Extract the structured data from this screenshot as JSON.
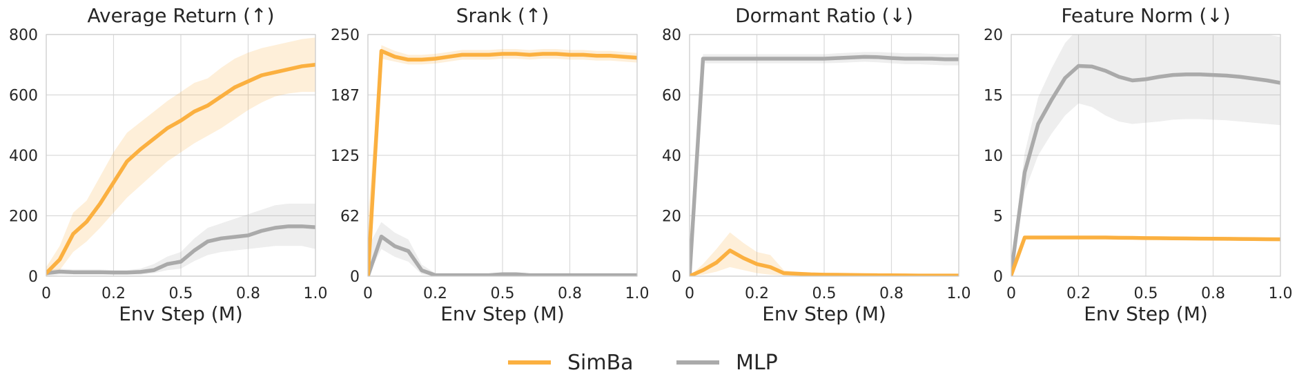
{
  "legend": [
    {
      "name": "SimBa",
      "color": "#fbb040"
    },
    {
      "name": "MLP",
      "color": "#aaaaaa"
    }
  ],
  "chart_data": [
    {
      "type": "line",
      "title": "Average Return (↑)",
      "xlabel": "Env Step (M)",
      "ylabel": "",
      "xlim": [
        0,
        1.0
      ],
      "ylim": [
        0,
        800
      ],
      "xticks": [
        0,
        0.25,
        0.5,
        0.75,
        1.0
      ],
      "xtick_labels": [
        "0",
        "0.2",
        "0.5",
        "0.8",
        "1.0"
      ],
      "yticks": [
        0,
        200,
        400,
        600,
        800
      ],
      "ytick_labels": [
        "0",
        "200",
        "400",
        "600",
        "800"
      ],
      "grid": true,
      "x": [
        0,
        0.05,
        0.1,
        0.15,
        0.2,
        0.25,
        0.3,
        0.35,
        0.4,
        0.45,
        0.5,
        0.55,
        0.6,
        0.65,
        0.7,
        0.75,
        0.8,
        0.85,
        0.9,
        0.95,
        1.0
      ],
      "series": [
        {
          "name": "SimBa",
          "color": "#fbb040",
          "values": [
            10,
            55,
            140,
            180,
            240,
            310,
            380,
            420,
            455,
            490,
            515,
            545,
            565,
            595,
            625,
            645,
            665,
            675,
            685,
            695,
            700
          ],
          "lower": [
            0,
            20,
            80,
            115,
            160,
            210,
            260,
            300,
            340,
            380,
            410,
            440,
            465,
            490,
            520,
            550,
            575,
            595,
            605,
            610,
            610
          ],
          "upper": [
            30,
            100,
            210,
            250,
            330,
            410,
            475,
            510,
            545,
            580,
            610,
            640,
            655,
            690,
            720,
            740,
            755,
            765,
            775,
            785,
            790
          ]
        },
        {
          "name": "MLP",
          "color": "#aaaaaa",
          "values": [
            10,
            15,
            13,
            13,
            13,
            12,
            12,
            14,
            20,
            40,
            48,
            85,
            115,
            125,
            130,
            135,
            150,
            160,
            165,
            165,
            162
          ],
          "lower": [
            0,
            5,
            5,
            5,
            5,
            5,
            5,
            5,
            10,
            20,
            25,
            50,
            70,
            80,
            85,
            90,
            95,
            100,
            100,
            100,
            90
          ],
          "upper": [
            20,
            25,
            22,
            22,
            22,
            20,
            20,
            25,
            40,
            65,
            80,
            125,
            160,
            175,
            190,
            205,
            220,
            235,
            240,
            240,
            240
          ]
        }
      ]
    },
    {
      "type": "line",
      "title": "Srank (↑)",
      "xlabel": "Env Step (M)",
      "ylabel": "",
      "xlim": [
        0,
        1.0
      ],
      "ylim": [
        0,
        250
      ],
      "xticks": [
        0,
        0.25,
        0.5,
        0.75,
        1.0
      ],
      "xtick_labels": [
        "0",
        "0.2",
        "0.5",
        "0.8",
        "1.0"
      ],
      "yticks": [
        0,
        62.5,
        125,
        187.5,
        250
      ],
      "ytick_labels": [
        "0",
        "62",
        "125",
        "187",
        "250"
      ],
      "grid": true,
      "x": [
        0,
        0.05,
        0.1,
        0.15,
        0.2,
        0.25,
        0.3,
        0.35,
        0.4,
        0.45,
        0.5,
        0.55,
        0.6,
        0.65,
        0.7,
        0.75,
        0.8,
        0.85,
        0.9,
        0.95,
        1.0
      ],
      "series": [
        {
          "name": "SimBa",
          "color": "#fbb040",
          "values": [
            0,
            233,
            227,
            224,
            224,
            225,
            227,
            229,
            229,
            229,
            230,
            230,
            229,
            230,
            230,
            229,
            229,
            228,
            228,
            227,
            226
          ],
          "lower": [
            0,
            225,
            222,
            219,
            219,
            220,
            222,
            224,
            224,
            224,
            225,
            225,
            224,
            225,
            225,
            224,
            224,
            223,
            223,
            222,
            221
          ],
          "upper": [
            60,
            239,
            233,
            229,
            229,
            230,
            232,
            234,
            234,
            234,
            235,
            235,
            234,
            235,
            235,
            234,
            234,
            233,
            233,
            232,
            231
          ]
        },
        {
          "name": "MLP",
          "color": "#aaaaaa",
          "values": [
            0,
            41,
            31,
            26,
            6,
            1,
            1,
            1,
            1,
            1,
            2,
            2,
            1,
            1,
            1,
            1,
            1,
            1,
            1,
            1,
            1
          ],
          "lower": [
            0,
            28,
            20,
            15,
            2,
            0,
            0,
            0,
            0,
            0,
            0,
            0,
            0,
            0,
            0,
            0,
            0,
            0,
            0,
            0,
            0
          ],
          "upper": [
            30,
            56,
            45,
            38,
            12,
            3,
            3,
            3,
            3,
            3,
            4,
            4,
            3,
            3,
            3,
            3,
            3,
            3,
            3,
            3,
            3
          ]
        }
      ]
    },
    {
      "type": "line",
      "title": "Dormant Ratio (↓)",
      "xlabel": "Env Step (M)",
      "ylabel": "",
      "xlim": [
        0,
        1.0
      ],
      "ylim": [
        0,
        80
      ],
      "xticks": [
        0,
        0.25,
        0.5,
        0.75,
        1.0
      ],
      "xtick_labels": [
        "0",
        "0.2",
        "0.5",
        "0.8",
        "1.0"
      ],
      "yticks": [
        0,
        20,
        40,
        60,
        80
      ],
      "ytick_labels": [
        "0",
        "20",
        "40",
        "60",
        "80"
      ],
      "grid": true,
      "x": [
        0,
        0.05,
        0.1,
        0.15,
        0.2,
        0.25,
        0.3,
        0.35,
        0.4,
        0.45,
        0.5,
        0.55,
        0.6,
        0.65,
        0.7,
        0.75,
        0.8,
        0.85,
        0.9,
        0.95,
        1.0
      ],
      "series": [
        {
          "name": "SimBa",
          "color": "#fbb040",
          "values": [
            0,
            2,
            4.5,
            8.5,
            6,
            4,
            3,
            1,
            0.8,
            0.6,
            0.5,
            0.45,
            0.4,
            0.35,
            0.3,
            0.3,
            0.25,
            0.2,
            0.2,
            0.2,
            0.2
          ],
          "lower": [
            0,
            0.5,
            1.5,
            3,
            2,
            1,
            0.5,
            0.2,
            0.2,
            0.2,
            0.1,
            0.1,
            0.1,
            0.1,
            0.1,
            0.1,
            0.1,
            0.1,
            0.1,
            0.1,
            0.1
          ],
          "upper": [
            0,
            4,
            9,
            14.5,
            11,
            8,
            7,
            2,
            1.5,
            1.2,
            1,
            0.9,
            0.8,
            0.7,
            0.6,
            0.6,
            0.5,
            0.4,
            0.4,
            0.4,
            0.4
          ]
        },
        {
          "name": "MLP",
          "color": "#aaaaaa",
          "values": [
            0,
            72,
            72,
            72,
            72,
            72,
            72,
            72,
            72,
            72,
            72,
            72.2,
            72.4,
            72.6,
            72.5,
            72.2,
            72,
            72,
            72,
            71.8,
            71.8
          ],
          "lower": [
            0,
            70.5,
            70.5,
            70.5,
            70.5,
            70.5,
            70.5,
            70.5,
            70.5,
            70.5,
            70.5,
            70.6,
            70.8,
            71,
            70.8,
            70.5,
            70.2,
            70.2,
            70,
            69.8,
            69.8
          ],
          "upper": [
            0,
            73.5,
            73.5,
            73.5,
            73.5,
            73.5,
            73.5,
            73.5,
            73.5,
            73.5,
            73.5,
            73.8,
            74,
            74.2,
            74.2,
            74,
            73.8,
            73.8,
            73.6,
            73.6,
            73.6
          ]
        }
      ]
    },
    {
      "type": "line",
      "title": "Feature Norm (↓)",
      "xlabel": "Env Step (M)",
      "ylabel": "",
      "xlim": [
        0,
        1.0
      ],
      "ylim": [
        0,
        20
      ],
      "xticks": [
        0,
        0.25,
        0.5,
        0.75,
        1.0
      ],
      "xtick_labels": [
        "0",
        "0.2",
        "0.5",
        "0.8",
        "1.0"
      ],
      "yticks": [
        0,
        5,
        10,
        15,
        20
      ],
      "ytick_labels": [
        "0",
        "5",
        "10",
        "15",
        "20"
      ],
      "grid": true,
      "x": [
        0,
        0.05,
        0.1,
        0.15,
        0.2,
        0.25,
        0.3,
        0.35,
        0.4,
        0.45,
        0.5,
        0.55,
        0.6,
        0.65,
        0.7,
        0.75,
        0.8,
        0.85,
        0.9,
        0.95,
        1.0
      ],
      "series": [
        {
          "name": "SimBa",
          "color": "#fbb040",
          "values": [
            0.1,
            3.2,
            3.2,
            3.2,
            3.2,
            3.2,
            3.2,
            3.2,
            3.18,
            3.17,
            3.15,
            3.14,
            3.13,
            3.12,
            3.11,
            3.1,
            3.09,
            3.08,
            3.07,
            3.06,
            3.05
          ],
          "lower": [
            0,
            3.1,
            3.1,
            3.1,
            3.1,
            3.1,
            3.1,
            3.1,
            3.08,
            3.07,
            3.05,
            3.04,
            3.03,
            3.02,
            3.01,
            3.0,
            2.99,
            2.98,
            2.97,
            2.96,
            2.95
          ],
          "upper": [
            0.2,
            3.3,
            3.3,
            3.3,
            3.3,
            3.3,
            3.3,
            3.3,
            3.28,
            3.27,
            3.25,
            3.24,
            3.23,
            3.22,
            3.21,
            3.2,
            3.19,
            3.18,
            3.17,
            3.16,
            3.15
          ]
        },
        {
          "name": "MLP",
          "color": "#aaaaaa",
          "values": [
            0.3,
            8.6,
            12.6,
            14.6,
            16.4,
            17.4,
            17.35,
            17.0,
            16.5,
            16.2,
            16.3,
            16.5,
            16.65,
            16.7,
            16.7,
            16.65,
            16.6,
            16.5,
            16.35,
            16.2,
            16.0
          ],
          "lower": [
            0,
            7.0,
            10.0,
            11.8,
            13.3,
            14.3,
            14.0,
            13.3,
            12.8,
            12.6,
            12.7,
            12.8,
            12.95,
            13.0,
            13.0,
            12.95,
            12.9,
            12.8,
            12.7,
            12.6,
            12.5
          ],
          "upper": [
            1.0,
            10.2,
            14.8,
            17.2,
            19.3,
            20.5,
            20.5,
            20.5,
            20.4,
            20.3,
            20.3,
            20.3,
            20.3,
            20.3,
            20.3,
            20.3,
            20.3,
            20.2,
            20.1,
            20.0,
            19.8
          ]
        }
      ]
    }
  ]
}
